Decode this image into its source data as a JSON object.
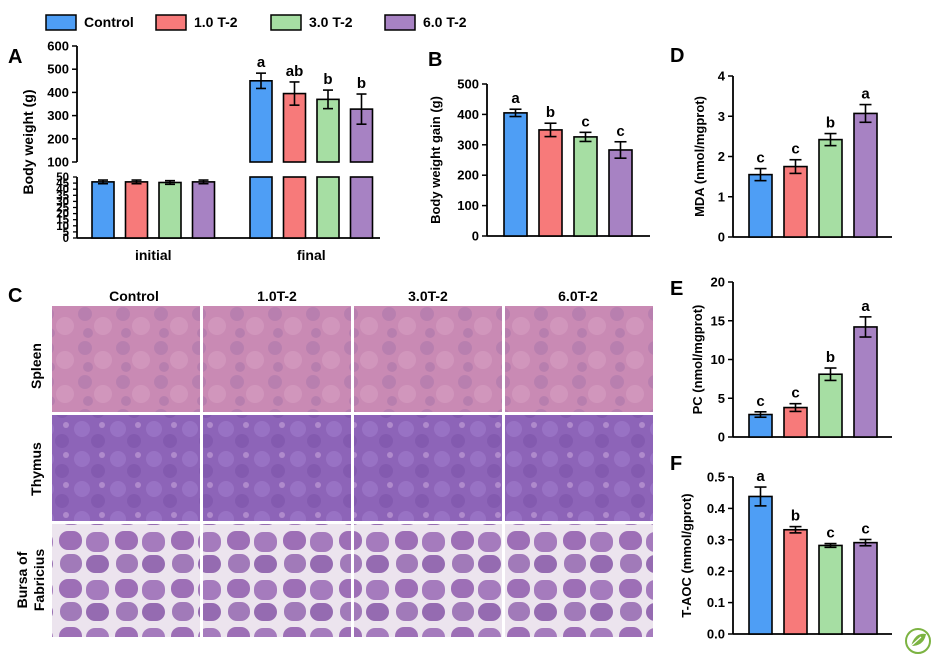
{
  "colors": {
    "Control": "#4e9ef5",
    "1.0 T-2": "#f77a7a",
    "3.0 T-2": "#a6dea3",
    "6.0 T-2": "#a782c3"
  },
  "legend": [
    "Control",
    "1.0 T-2",
    "3.0 T-2",
    "6.0 T-2"
  ],
  "panel_labels": {
    "A": "A",
    "B": "B",
    "C": "C",
    "D": "D",
    "E": "E",
    "F": "F"
  },
  "histology": {
    "columns": [
      "Control",
      "1.0T-2",
      "3.0T-2",
      "6.0T-2"
    ],
    "rows": [
      "Spleen",
      "Thymus",
      "Bursa of Fabricius"
    ],
    "row_line1": [
      "Spleen",
      "Thymus",
      "Bursa of"
    ],
    "row_line2": [
      "",
      "",
      "Fabricius"
    ]
  },
  "chart_data": [
    {
      "id": "A",
      "type": "bar",
      "ylabel": "Body weight (g)",
      "categories": [
        "initial",
        "final"
      ],
      "ylim_lower": [
        0,
        50
      ],
      "ylim_upper": [
        100,
        600
      ],
      "y_axis_break": true,
      "yticks_lower": [
        0,
        5,
        10,
        15,
        20,
        25,
        30,
        35,
        40,
        45,
        50
      ],
      "yticks_upper": [
        100,
        200,
        300,
        400,
        500,
        600
      ],
      "series": [
        {
          "name": "Control",
          "values": [
            46,
            450
          ],
          "errors": [
            1.5,
            33
          ],
          "letters": [
            "",
            "a"
          ]
        },
        {
          "name": "1.0 T-2",
          "values": [
            46,
            395
          ],
          "errors": [
            1.5,
            50
          ],
          "letters": [
            "",
            "ab"
          ]
        },
        {
          "name": "3.0 T-2",
          "values": [
            45.5,
            370
          ],
          "errors": [
            1.5,
            40
          ],
          "letters": [
            "",
            "b"
          ]
        },
        {
          "name": "6.0 T-2",
          "values": [
            46,
            328
          ],
          "errors": [
            1.5,
            65
          ],
          "letters": [
            "",
            "b"
          ]
        }
      ]
    },
    {
      "id": "B",
      "type": "bar",
      "ylabel": "Body weight gain (g)",
      "categories": [
        "Control",
        "1.0 T-2",
        "3.0 T-2",
        "6.0 T-2"
      ],
      "ylim": [
        0,
        500
      ],
      "yticks": [
        0,
        100,
        200,
        300,
        400,
        500
      ],
      "values": [
        405,
        349,
        326,
        283
      ],
      "errors": [
        12,
        22,
        15,
        27
      ],
      "letters": [
        "a",
        "b",
        "c",
        "c"
      ]
    },
    {
      "id": "D",
      "type": "bar",
      "ylabel": "MDA (nmol/mgprot)",
      "categories": [
        "Control",
        "1.0 T-2",
        "3.0 T-2",
        "6.0 T-2"
      ],
      "ylim": [
        0,
        4
      ],
      "yticks": [
        0,
        1,
        2,
        3,
        4
      ],
      "values": [
        1.55,
        1.75,
        2.42,
        3.07
      ],
      "errors": [
        0.15,
        0.17,
        0.15,
        0.22
      ],
      "letters": [
        "c",
        "c",
        "b",
        "a"
      ]
    },
    {
      "id": "E",
      "type": "bar",
      "ylabel": "PC (nmol/mgprot)",
      "categories": [
        "Control",
        "1.0 T-2",
        "3.0 T-2",
        "6.0 T-2"
      ],
      "ylim": [
        0,
        20
      ],
      "yticks": [
        0,
        5,
        10,
        15,
        20
      ],
      "values": [
        2.9,
        3.8,
        8.1,
        14.2
      ],
      "errors": [
        0.35,
        0.5,
        0.8,
        1.3
      ],
      "letters": [
        "c",
        "c",
        "b",
        "a"
      ]
    },
    {
      "id": "F",
      "type": "bar",
      "ylabel": "T-AOC (mmol/gprot)",
      "categories": [
        "Control",
        "1.0 T-2",
        "3.0 T-2",
        "6.0 T-2"
      ],
      "ylim": [
        0,
        0.5
      ],
      "yticks": [
        0.0,
        0.1,
        0.2,
        0.3,
        0.4,
        0.5
      ],
      "ytick_labels": [
        "0.0",
        "0.1",
        "0.2",
        "0.3",
        "0.4",
        "0.5"
      ],
      "values": [
        0.438,
        0.332,
        0.282,
        0.291
      ],
      "errors": [
        0.03,
        0.01,
        0.006,
        0.01
      ],
      "letters": [
        "a",
        "b",
        "c",
        "c"
      ]
    }
  ]
}
